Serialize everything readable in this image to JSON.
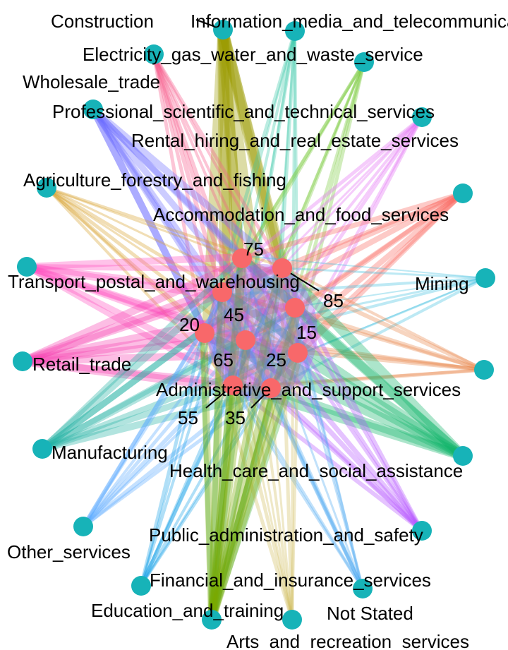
{
  "diagram": {
    "type": "bipartite-network",
    "industry_node_color": "#17b3b8",
    "age_node_color": "#f8686a",
    "industries": [
      {
        "id": "construction",
        "label": "Construction",
        "color": "#9a9a00"
      },
      {
        "id": "information",
        "label": "Information_media_and_telecommunications",
        "color": "#3dc9a8"
      },
      {
        "id": "electricity",
        "label": "Electricity_gas_water_and_waste_service",
        "color": "#7ccb3e"
      },
      {
        "id": "wholesale",
        "label": "Wholesale_trade",
        "color": "#f65a89"
      },
      {
        "id": "professional",
        "label": "Professional_scientific_and_technical_services",
        "color": "#6c6cff"
      },
      {
        "id": "rental",
        "label": "Rental_hiring_and_real_estate_services",
        "color": "#e36cf4"
      },
      {
        "id": "agriculture",
        "label": "Agriculture_forestry_and_fishing",
        "color": "#d8a02c"
      },
      {
        "id": "accommodation",
        "label": "Accommodation_and_food_services",
        "color": "#f8675f"
      },
      {
        "id": "transport",
        "label": "Transport_postal_and_warehousing",
        "color": "#ff4fbf"
      },
      {
        "id": "mining",
        "label": "Mining",
        "color": "#43c1e0"
      },
      {
        "id": "retail",
        "label": "Retail_trade",
        "color": "#f643b3"
      },
      {
        "id": "administrative",
        "label": "Administrative_and_support_services",
        "color": "#e8874a"
      },
      {
        "id": "manufacturing",
        "label": "Manufacturing",
        "color": "#22b3a4"
      },
      {
        "id": "health",
        "label": "Health_care_and_social_assistance",
        "color": "#12b56a"
      },
      {
        "id": "other",
        "label": "Other_services",
        "color": "#5aa8ff"
      },
      {
        "id": "public",
        "label": "Public_administration_and_safety",
        "color": "#b552ff"
      },
      {
        "id": "financial",
        "label": "Financial_and_insurance_services",
        "color": "#1ea3e8"
      },
      {
        "id": "education",
        "label": "Education_and_training",
        "color": "#45b547"
      },
      {
        "id": "notstated",
        "label": "Not Stated",
        "color": "#4da8f0"
      },
      {
        "id": "arts",
        "label": "Arts_and_recreation_services",
        "color": "#d2bc5e"
      },
      {
        "id": "education2",
        "label": "",
        "color": "#7aa800"
      }
    ],
    "age_groups": [
      {
        "id": "a75",
        "label": "75"
      },
      {
        "id": "a85",
        "label": "85"
      },
      {
        "id": "a45",
        "label": "45"
      },
      {
        "id": "a15",
        "label": "15"
      },
      {
        "id": "a20",
        "label": "20"
      },
      {
        "id": "a65",
        "label": "65"
      },
      {
        "id": "a25",
        "label": "25"
      },
      {
        "id": "a55",
        "label": "55"
      },
      {
        "id": "a35",
        "label": "35"
      }
    ]
  }
}
